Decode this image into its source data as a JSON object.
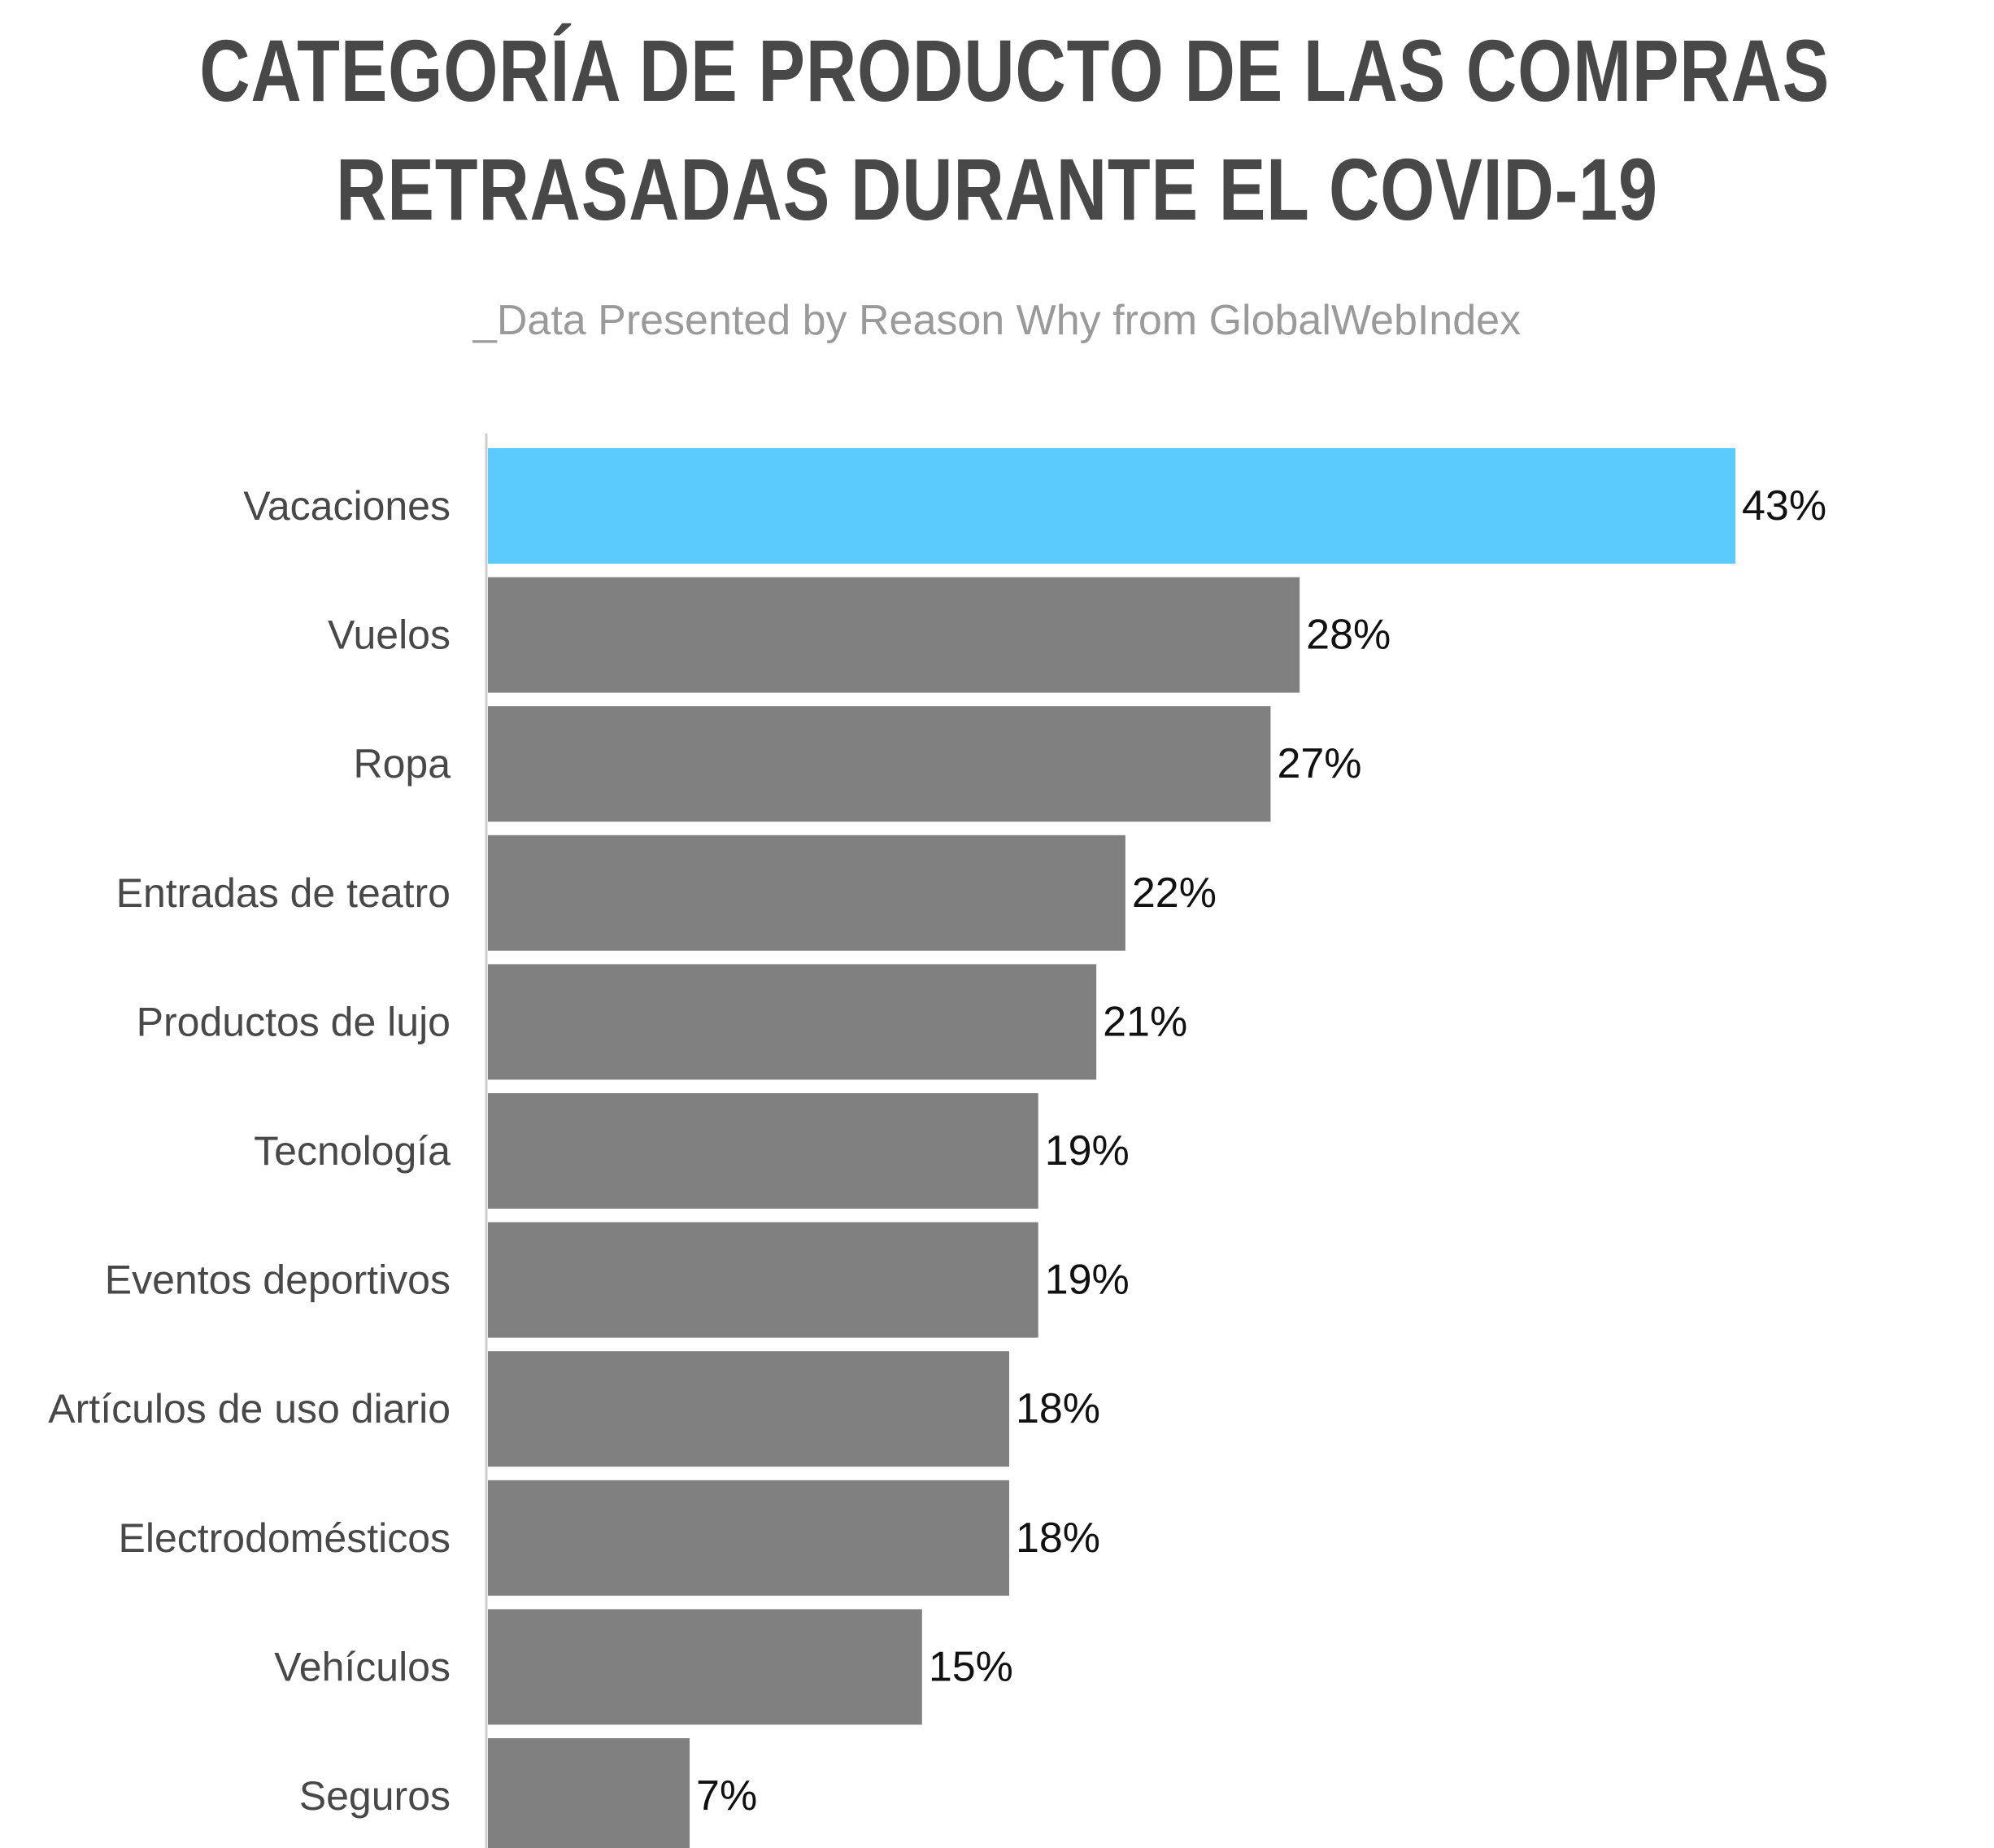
{
  "chart_data": {
    "type": "bar",
    "orientation": "horizontal",
    "title_lines": [
      "CATEGORÍA DE PRODUCTO DE LAS COMPRAS",
      "RETRASADAS DURANTE EL COVID-19"
    ],
    "subtitle": "_Data Presented by Reason Why from GlobalWebIndex",
    "categories": [
      "Vacaciones",
      "Vuelos",
      "Ropa",
      "Entradas de teatro",
      "Productos de lujo",
      "Tecnología",
      "Eventos deportivos",
      "Artículos de uso diario",
      "Electrodomésticos",
      "Vehículos",
      "Seguros"
    ],
    "values": [
      43,
      28,
      27,
      22,
      21,
      19,
      19,
      18,
      18,
      15,
      7
    ],
    "value_labels": [
      "43%",
      "28%",
      "27%",
      "22%",
      "21%",
      "19%",
      "19%",
      "18%",
      "18%",
      "15%",
      "7%"
    ],
    "unit": "%",
    "xlim": [
      0,
      43
    ],
    "grid": false,
    "legend": "none",
    "highlight_index": 0,
    "colors": {
      "highlight": "#5bcbfd",
      "default": "#808080",
      "axis": "#cccccc",
      "category_text": "#484848",
      "value_text": "#111111"
    }
  }
}
